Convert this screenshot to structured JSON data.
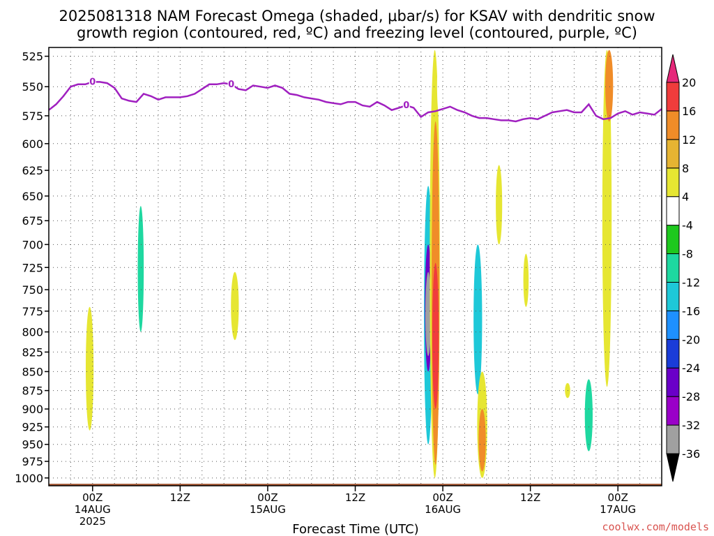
{
  "title_line1": "2025081318 NAM Forecast Omega (shaded, μbar/s) for KSAV with dendritic snow",
  "title_line2": "growth region (contoured, red, ºC) and freezing level (contoured, purple, ºC)",
  "credit": "coolwx.com/models",
  "chart_data": {
    "type": "heatmap",
    "title": "2025081318 NAM Forecast Omega (shaded, μbar/s) for KSAV with dendritic snow growth region (contoured, red, ºC) and freezing level (contoured, purple, ºC)",
    "xlabel": "Forecast Time (UTC)",
    "ylabel": "",
    "x_units": "hours since 2025-08-13 18Z",
    "xlim": [
      0,
      84
    ],
    "ylim": [
      1012,
      518
    ],
    "y_scale": "log-pressure (hPa), inverted",
    "grid": true,
    "y_ticks": [
      525,
      550,
      575,
      600,
      625,
      650,
      675,
      700,
      725,
      750,
      775,
      800,
      825,
      850,
      875,
      900,
      925,
      950,
      975,
      1000
    ],
    "x_ticks": [
      {
        "x": 6,
        "line1": "00Z",
        "line2": "14AUG",
        "line3": "2025"
      },
      {
        "x": 18,
        "line1": "12Z",
        "line2": "",
        "line3": ""
      },
      {
        "x": 30,
        "line1": "00Z",
        "line2": "15AUG",
        "line3": ""
      },
      {
        "x": 42,
        "line1": "12Z",
        "line2": "",
        "line3": ""
      },
      {
        "x": 54,
        "line1": "00Z",
        "line2": "16AUG",
        "line3": ""
      },
      {
        "x": 66,
        "line1": "12Z",
        "line2": "",
        "line3": ""
      },
      {
        "x": 78,
        "line1": "00Z",
        "line2": "17AUG",
        "line3": ""
      }
    ],
    "colorbar": {
      "levels": [
        -36,
        -32,
        -28,
        -24,
        -20,
        -16,
        -12,
        -8,
        -4,
        4,
        8,
        12,
        16,
        20
      ],
      "colors": [
        "#000000",
        "#a0a0a0",
        "#9a00c8",
        "#6a00c8",
        "#1a3cd8",
        "#1e90ff",
        "#1ec8d8",
        "#1ed8a0",
        "#1ec81e",
        "#ffffff",
        "#e6e632",
        "#e6b432",
        "#f08c28",
        "#f03c3c",
        "#e6287a"
      ]
    },
    "freezing_level": {
      "label": "0",
      "x": [
        0,
        1,
        2,
        3,
        4,
        5,
        6,
        7,
        8,
        9,
        10,
        11,
        12,
        13,
        14,
        15,
        16,
        17,
        18,
        19,
        20,
        21,
        22,
        23,
        24,
        25,
        26,
        27,
        28,
        29,
        30,
        31,
        32,
        33,
        34,
        35,
        36,
        37,
        38,
        39,
        40,
        41,
        42,
        43,
        44,
        45,
        46,
        47,
        48,
        49,
        50,
        51,
        52,
        53,
        54,
        55,
        56,
        57,
        58,
        59,
        60,
        61,
        62,
        63,
        64,
        65,
        66,
        67,
        68,
        69,
        70,
        71,
        72,
        73,
        74,
        75,
        76,
        77,
        78,
        79,
        80,
        81,
        82,
        83,
        84
      ],
      "p": [
        570,
        565,
        558,
        550,
        548,
        548,
        546,
        546,
        547,
        551,
        560,
        562,
        563,
        556,
        558,
        561,
        559,
        559,
        559,
        558,
        556,
        552,
        548,
        548,
        547,
        548,
        552,
        553,
        549,
        550,
        551,
        549,
        551,
        556,
        557,
        559,
        560,
        561,
        563,
        564,
        565,
        563,
        563,
        566,
        567,
        563,
        566,
        570,
        568,
        566,
        568,
        576,
        572,
        571,
        569,
        567,
        570,
        572,
        575,
        577,
        577,
        578,
        579,
        579,
        580,
        578,
        577,
        578,
        575,
        572,
        571,
        570,
        572,
        572,
        565,
        575,
        578,
        577,
        573,
        571,
        574,
        572,
        573,
        574,
        569
      ]
    },
    "omega_cells": [
      {
        "x": 5.6,
        "p0": 770,
        "p1": 930,
        "w": 0.5,
        "value": 4
      },
      {
        "x": 2.4,
        "p0": 875,
        "p1": 970,
        "w": 0.7,
        "value": -4
      },
      {
        "x": 12.6,
        "p0": 520,
        "p1": 900,
        "w": 0.6,
        "value": -4
      },
      {
        "x": 12.6,
        "p0": 660,
        "p1": 800,
        "w": 0.25,
        "value": -12
      },
      {
        "x": 25.5,
        "p0": 730,
        "p1": 810,
        "w": 0.5,
        "value": 4
      },
      {
        "x": 28.2,
        "p0": 840,
        "p1": 985,
        "w": 4.2,
        "value": -4
      },
      {
        "x": 51.9,
        "p0": 535,
        "p1": 990,
        "w": 1.0,
        "value": -4
      },
      {
        "x": 52.0,
        "p0": 640,
        "p1": 950,
        "w": 0.6,
        "value": -16
      },
      {
        "x": 52.0,
        "p0": 700,
        "p1": 850,
        "w": 0.35,
        "value": -28
      },
      {
        "x": 52.0,
        "p0": 730,
        "p1": 830,
        "w": 0.2,
        "value": -36
      },
      {
        "x": 52.9,
        "p0": 520,
        "p1": 1000,
        "w": 0.8,
        "value": 4
      },
      {
        "x": 53.0,
        "p0": 580,
        "p1": 980,
        "w": 0.5,
        "value": 12
      },
      {
        "x": 53.0,
        "p0": 720,
        "p1": 900,
        "w": 0.3,
        "value": 16
      },
      {
        "x": 53.7,
        "p0": 520,
        "p1": 580,
        "w": 0.4,
        "value": -4
      },
      {
        "x": 58.8,
        "p0": 650,
        "p1": 960,
        "w": 1.2,
        "value": -4
      },
      {
        "x": 58.8,
        "p0": 700,
        "p1": 880,
        "w": 0.6,
        "value": -16
      },
      {
        "x": 59.4,
        "p0": 850,
        "p1": 1000,
        "w": 0.8,
        "value": 4
      },
      {
        "x": 59.4,
        "p0": 900,
        "p1": 990,
        "w": 0.4,
        "value": 12
      },
      {
        "x": 61.7,
        "p0": 620,
        "p1": 700,
        "w": 0.3,
        "value": 4
      },
      {
        "x": 65.4,
        "p0": 710,
        "p1": 770,
        "w": 0.15,
        "value": 4
      },
      {
        "x": 71.5,
        "p0": 520,
        "p1": 760,
        "w": 0.6,
        "value": -4
      },
      {
        "x": 74.0,
        "p0": 520,
        "p1": 985,
        "w": 1.0,
        "value": -4
      },
      {
        "x": 74.0,
        "p0": 860,
        "p1": 960,
        "w": 0.5,
        "value": -12
      },
      {
        "x": 73.0,
        "p0": 650,
        "p1": 730,
        "w": 0.6,
        "value": -4
      },
      {
        "x": 76.5,
        "p0": 520,
        "p1": 870,
        "w": 0.7,
        "value": 4
      },
      {
        "x": 76.8,
        "p0": 520,
        "p1": 580,
        "w": 0.5,
        "value": 12
      },
      {
        "x": 71.1,
        "p0": 865,
        "p1": 885,
        "w": 0.15,
        "value": 4
      }
    ],
    "terrain": {
      "top_hpa": 1009,
      "color": "#a0522d"
    }
  }
}
